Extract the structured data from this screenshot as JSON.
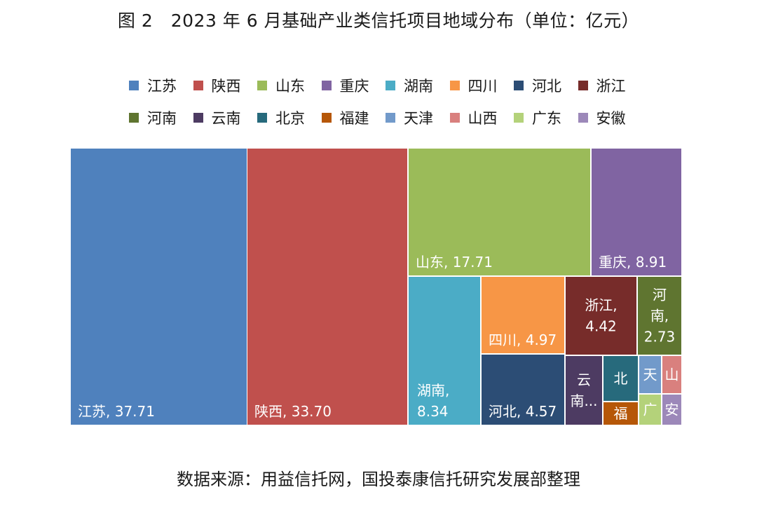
{
  "header": {
    "title": "图 2　2023 年 6 月基础产业类信托项目地域分布（单位：亿元）"
  },
  "footer": {
    "source": "数据来源：用益信托网，国投泰康信托研究发展部整理"
  },
  "chart_data": {
    "type": "treemap",
    "title": "图 2　2023 年 6 月基础产业类信托项目地域分布（单位：亿元）",
    "unit": "亿元",
    "legend_placement": "top",
    "items": [
      {
        "name": "江苏",
        "value": 37.71,
        "color": "#4f81bd",
        "label": "江苏, 37.71"
      },
      {
        "name": "陕西",
        "value": 33.7,
        "color": "#c0504d",
        "label": "陕西, 33.70"
      },
      {
        "name": "山东",
        "value": 17.71,
        "color": "#9bbb59",
        "label": "山东, 17.71"
      },
      {
        "name": "重庆",
        "value": 8.91,
        "color": "#8064a2",
        "label": "重庆, 8.91"
      },
      {
        "name": "湖南",
        "value": 8.34,
        "color": "#4bacc6",
        "label": "湖南,\n8.34"
      },
      {
        "name": "四川",
        "value": 4.97,
        "color": "#f79646",
        "label": "四川, 4.97"
      },
      {
        "name": "河北",
        "value": 4.57,
        "color": "#2c4d75",
        "label": "河北, 4.57"
      },
      {
        "name": "浙江",
        "value": 4.42,
        "color": "#772c2a",
        "label": "浙江,\n4.42"
      },
      {
        "name": "河南",
        "value": 2.73,
        "color": "#5f7530",
        "label": "河\n南,\n2.73"
      },
      {
        "name": "云南",
        "value": null,
        "color": "#4d3b62",
        "label": "云\n南..."
      },
      {
        "name": "北京",
        "value": null,
        "color": "#276a7c",
        "label": "北"
      },
      {
        "name": "福建",
        "value": null,
        "color": "#b65708",
        "label": "福"
      },
      {
        "name": "天津",
        "value": null,
        "color": "#729aca",
        "label": "天"
      },
      {
        "name": "山西",
        "value": null,
        "color": "#d9807e",
        "label": "山"
      },
      {
        "name": "广东",
        "value": null,
        "color": "#b4d27a",
        "label": "广"
      },
      {
        "name": "安徽",
        "value": null,
        "color": "#9c88b9",
        "label": "安"
      }
    ]
  }
}
